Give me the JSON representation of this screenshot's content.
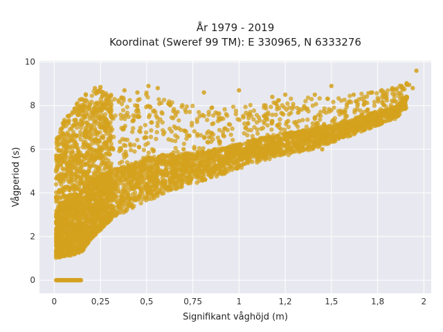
{
  "chart_data": {
    "type": "scatter",
    "title_lines": [
      "År 1979 - 2019",
      "Koordinat (Sweref 99 TM): E 330965, N 6333276"
    ],
    "xlabel": "Signifikant våghöjd (m)",
    "ylabel": "Vågperiod (s)",
    "xlim": [
      -0.08,
      2.04
    ],
    "ylim": [
      -0.6,
      10.05
    ],
    "x_ticks": [
      0,
      0.25,
      0.5,
      0.75,
      1,
      1.25,
      1.5,
      1.75,
      2
    ],
    "x_tick_labels": [
      "0",
      "0,25",
      "0,5",
      "0,75",
      "1",
      "1,2",
      "1,5",
      "1,8",
      "2"
    ],
    "y_ticks": [
      0,
      2,
      4,
      6,
      8,
      10
    ],
    "y_tick_labels": [
      "0",
      "2",
      "4",
      "6",
      "8",
      "10"
    ],
    "grid": true,
    "marker_color": "#D4A11E",
    "background_color": "#E8E9F0",
    "approx_total_points": 350000,
    "density_envelope": {
      "x": [
        0.01,
        0.05,
        0.1,
        0.15,
        0.2,
        0.25,
        0.3,
        0.4,
        0.5,
        0.6,
        0.75,
        0.9,
        1.0,
        1.1,
        1.25,
        1.4,
        1.5,
        1.6,
        1.75,
        1.85,
        1.95
      ],
      "y_lower": [
        1.0,
        1.1,
        1.15,
        1.3,
        1.9,
        2.3,
        2.7,
        3.2,
        3.6,
        4.0,
        4.4,
        4.8,
        5.1,
        5.4,
        5.7,
        6.0,
        6.3,
        6.6,
        7.1,
        7.4,
        8.3
      ],
      "y_upper": [
        6.5,
        7.3,
        7.8,
        8.5,
        8.6,
        8.8,
        8.5,
        8.4,
        8.6,
        8.4,
        8.0,
        7.9,
        8.0,
        8.1,
        8.3,
        8.4,
        8.3,
        8.5,
        8.7,
        8.8,
        9.5
      ]
    },
    "zero_period_band": {
      "x_range": [
        0.01,
        0.15
      ],
      "y": 0
    },
    "highlighted_points": [
      {
        "x": 0.22,
        "y": 8.8
      },
      {
        "x": 0.25,
        "y": 8.85
      },
      {
        "x": 0.38,
        "y": 8.7
      },
      {
        "x": 0.51,
        "y": 8.9
      },
      {
        "x": 0.56,
        "y": 8.8
      },
      {
        "x": 0.45,
        "y": 8.6
      },
      {
        "x": 0.1,
        "y": 7.7
      },
      {
        "x": 0.81,
        "y": 8.6
      },
      {
        "x": 1.0,
        "y": 8.7
      },
      {
        "x": 1.18,
        "y": 8.4
      },
      {
        "x": 1.25,
        "y": 8.5
      },
      {
        "x": 1.41,
        "y": 8.5
      },
      {
        "x": 1.5,
        "y": 8.9
      },
      {
        "x": 1.62,
        "y": 8.5
      },
      {
        "x": 1.72,
        "y": 8.6
      },
      {
        "x": 1.83,
        "y": 8.8
      },
      {
        "x": 1.88,
        "y": 8.9
      },
      {
        "x": 1.92,
        "y": 8.95
      },
      {
        "x": 1.94,
        "y": 8.8
      },
      {
        "x": 1.96,
        "y": 9.6
      },
      {
        "x": 0.62,
        "y": 5.3
      },
      {
        "x": 0.7,
        "y": 6.0
      },
      {
        "x": 1.3,
        "y": 6.2
      },
      {
        "x": 1.45,
        "y": 6.0
      }
    ]
  }
}
